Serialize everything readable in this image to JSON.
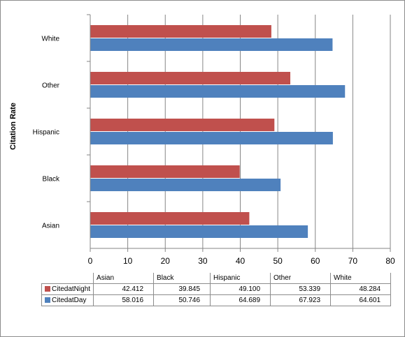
{
  "chart_data": {
    "type": "bar",
    "orientation": "horizontal",
    "categories": [
      "Asian",
      "Black",
      "Hispanic",
      "Other",
      "White"
    ],
    "series": [
      {
        "name": "CitedatNight",
        "color": "#c0504d",
        "values": [
          42.412,
          39.845,
          49.1,
          53.339,
          48.284
        ]
      },
      {
        "name": "CitedatDay",
        "color": "#4f81bd",
        "values": [
          58.016,
          50.746,
          64.689,
          67.923,
          64.601
        ]
      }
    ],
    "value_labels": {
      "CitedatNight": [
        "42.412",
        "39.845",
        "49.100",
        "53.339",
        "48.284"
      ],
      "CitedatDay": [
        "58.016",
        "50.746",
        "64.689",
        "67.923",
        "64.601"
      ]
    },
    "ylabel": "Citation Rate",
    "xlim": [
      0,
      80
    ],
    "xticks": [
      0,
      10,
      20,
      30,
      40,
      50,
      60,
      70,
      80
    ],
    "grid": "vertical",
    "legend": "data-table"
  }
}
